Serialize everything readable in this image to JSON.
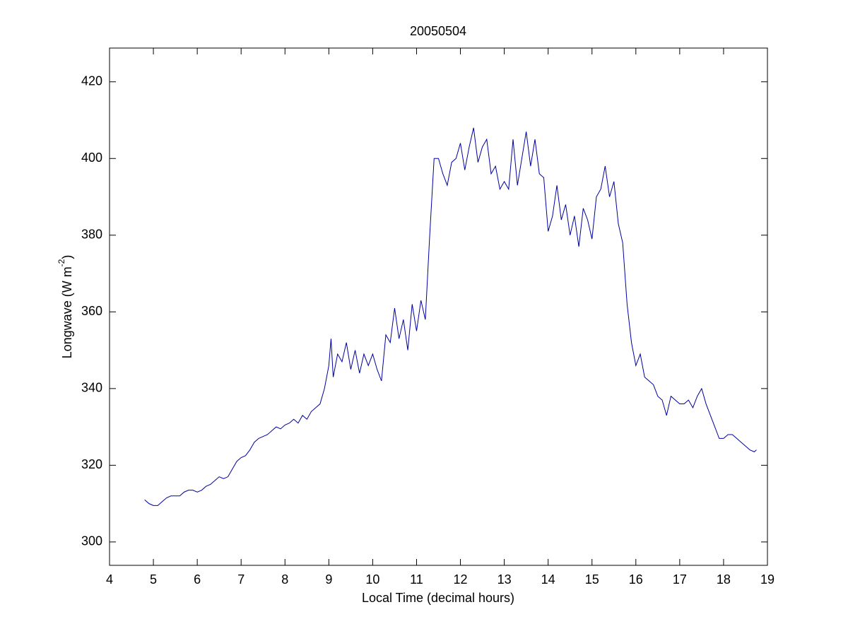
{
  "chart_data": {
    "type": "line",
    "title": "20050504",
    "xlabel": "Local Time (decimal hours)",
    "ylabel": [
      "Longwave (W m",
      "-2",
      ")"
    ],
    "xlim": [
      4,
      19
    ],
    "xticks": [
      4,
      5,
      6,
      7,
      8,
      9,
      10,
      11,
      12,
      13,
      14,
      15,
      16,
      17,
      18,
      19
    ],
    "ylim": [
      293.9,
      428.8
    ],
    "yticks": [
      300,
      320,
      340,
      360,
      380,
      400,
      420
    ],
    "grid": false,
    "color": "#0000a0",
    "x": [
      4.8,
      4.9,
      5.0,
      5.1,
      5.2,
      5.3,
      5.4,
      5.5,
      5.6,
      5.7,
      5.8,
      5.9,
      6.0,
      6.1,
      6.2,
      6.3,
      6.4,
      6.5,
      6.6,
      6.7,
      6.8,
      6.9,
      7.0,
      7.1,
      7.2,
      7.3,
      7.4,
      7.5,
      7.6,
      7.7,
      7.8,
      7.9,
      8.0,
      8.1,
      8.2,
      8.3,
      8.4,
      8.5,
      8.6,
      8.7,
      8.8,
      8.9,
      9.0,
      9.05,
      9.1,
      9.2,
      9.3,
      9.4,
      9.5,
      9.6,
      9.7,
      9.8,
      9.9,
      10.0,
      10.1,
      10.2,
      10.3,
      10.4,
      10.5,
      10.6,
      10.7,
      10.8,
      10.9,
      11.0,
      11.1,
      11.2,
      11.3,
      11.4,
      11.5,
      11.6,
      11.7,
      11.8,
      11.9,
      12.0,
      12.1,
      12.2,
      12.3,
      12.4,
      12.5,
      12.6,
      12.7,
      12.8,
      12.9,
      13.0,
      13.1,
      13.2,
      13.3,
      13.4,
      13.5,
      13.6,
      13.7,
      13.8,
      13.9,
      14.0,
      14.1,
      14.2,
      14.3,
      14.4,
      14.5,
      14.6,
      14.7,
      14.8,
      14.9,
      15.0,
      15.1,
      15.2,
      15.3,
      15.4,
      15.5,
      15.6,
      15.7,
      15.8,
      15.9,
      16.0,
      16.1,
      16.2,
      16.3,
      16.4,
      16.5,
      16.6,
      16.7,
      16.8,
      16.9,
      17.0,
      17.1,
      17.2,
      17.3,
      17.4,
      17.5,
      17.6,
      17.7,
      17.8,
      17.9,
      18.0,
      18.1,
      18.2,
      18.3,
      18.4,
      18.5,
      18.6,
      18.7,
      18.75
    ],
    "values": [
      311,
      310,
      309.5,
      309.5,
      310.5,
      311.5,
      312,
      312,
      312,
      313,
      313.5,
      313.5,
      313,
      313.5,
      314.5,
      315,
      316,
      317,
      316.5,
      317,
      319,
      321,
      322,
      322.5,
      324,
      326,
      327,
      327.5,
      328,
      329,
      330,
      329.5,
      330.5,
      331,
      332,
      331,
      333,
      332,
      334,
      335,
      336,
      340,
      346,
      353,
      343,
      349,
      347,
      352,
      345,
      350,
      344,
      349,
      346,
      349,
      345,
      342,
      354,
      352,
      361,
      353,
      358,
      350,
      362,
      355,
      363,
      358,
      380,
      400,
      400,
      396,
      393,
      399,
      400,
      404,
      397,
      403,
      408,
      399,
      403,
      405,
      396,
      398,
      392,
      394,
      392,
      405,
      393,
      400,
      407,
      398,
      405,
      396,
      395,
      381,
      385,
      393,
      384,
      388,
      380,
      385,
      377,
      387,
      384,
      379,
      390,
      392,
      398,
      390,
      394,
      383,
      378,
      362,
      352,
      346,
      349,
      343,
      342,
      341,
      338,
      337,
      333,
      338,
      337,
      336,
      336,
      337,
      335,
      338,
      340,
      336,
      333,
      330,
      327,
      327,
      328,
      328,
      327,
      326,
      325,
      324,
      323.5,
      324
    ]
  }
}
